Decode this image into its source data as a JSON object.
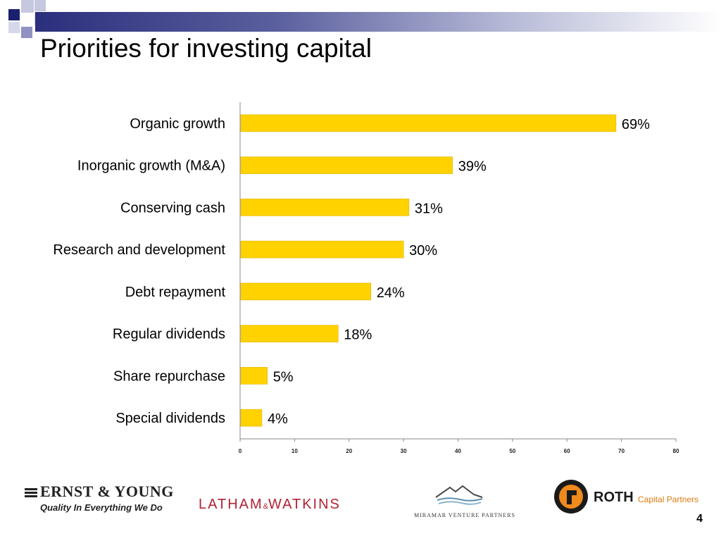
{
  "slide": {
    "title": "Priorities for investing capital",
    "page_number": "4"
  },
  "colors": {
    "bar": "#FFD200",
    "bar_border": "#E0B400",
    "axis": "#888888",
    "accent": "#2b2f7c"
  },
  "chart_data": {
    "type": "bar",
    "orientation": "horizontal",
    "categories": [
      "Organic growth",
      "Inorganic growth (M&A)",
      "Conserving cash",
      "Research and development",
      "Debt repayment",
      "Regular dividends",
      "Share repurchase",
      "Special dividends"
    ],
    "values": [
      69,
      39,
      31,
      30,
      24,
      18,
      5,
      4
    ],
    "data_labels": [
      "69%",
      "39%",
      "31%",
      "30%",
      "24%",
      "18%",
      "5%",
      "4%"
    ],
    "xlim": [
      0,
      80
    ],
    "xticks": [
      0,
      10,
      20,
      30,
      40,
      50,
      60,
      70,
      80
    ],
    "grid": false,
    "legend": "none"
  },
  "logos": {
    "ernst_young": {
      "name": "ERNST & YOUNG",
      "tagline": "Quality In Everything We Do",
      "icon": "ey-bars-icon"
    },
    "latham": {
      "name_left": "LATHAM",
      "amp": "&",
      "name_right": "WATKINS"
    },
    "miramar": {
      "name": "MIRAMAR VENTURE PARTNERS",
      "icon": "mountain-waves-icon"
    },
    "roth": {
      "name": "ROTH",
      "sub": "Capital Partners",
      "icon": "roth-circle-icon"
    }
  }
}
